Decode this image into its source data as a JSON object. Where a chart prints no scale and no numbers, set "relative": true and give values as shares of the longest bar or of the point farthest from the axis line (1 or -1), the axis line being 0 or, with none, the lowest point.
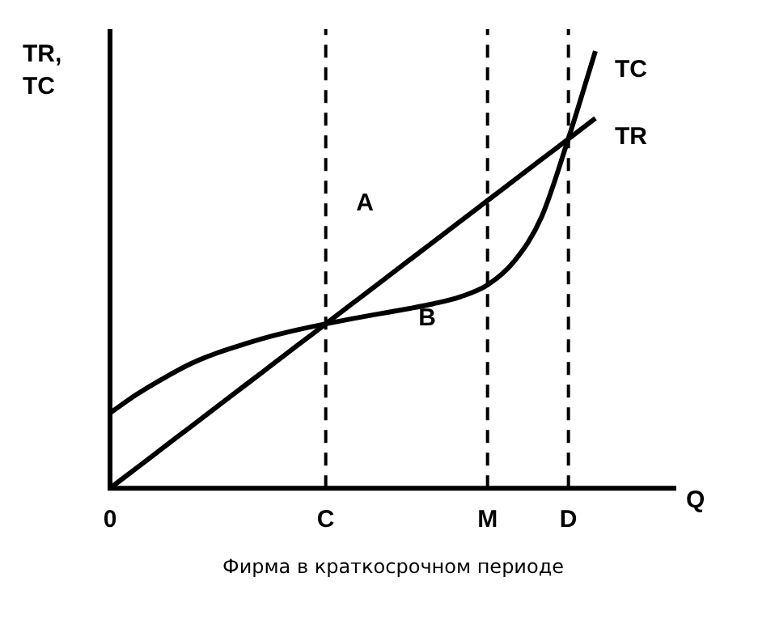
{
  "chart_data": {
    "type": "line",
    "title": "Фирма в краткосрочном периоде",
    "xlabel": "Q",
    "ylabel": "TR,\nTC",
    "relative": true,
    "grid": false,
    "legend": false,
    "marker": "none",
    "line_style": "solid",
    "categories": [
      "0",
      null,
      null,
      null,
      null,
      null,
      null,
      null,
      "C",
      null,
      null,
      null,
      null,
      null,
      "M",
      null,
      null,
      "D",
      null,
      null,
      null,
      null
    ],
    "series": [
      {
        "name": "TC",
        "color": "#000000",
        "values": [
          0.172,
          0.215,
          0.252,
          0.285,
          0.31,
          0.33,
          0.348,
          0.363,
          0.376,
          0.388,
          0.399,
          0.41,
          0.422,
          0.438,
          0.465,
          0.52,
          0.62,
          0.8,
          1.0,
          null,
          null,
          null
        ]
      },
      {
        "name": "TR",
        "color": "#000000",
        "values": [
          0,
          0.047,
          0.094,
          0.141,
          0.188,
          0.235,
          0.282,
          0.329,
          0.376,
          0.423,
          0.47,
          0.517,
          0.564,
          0.611,
          0.658,
          0.705,
          0.752,
          0.799,
          0.846,
          null,
          null,
          null
        ]
      }
    ],
    "ref_lines": [
      {
        "axis": "x",
        "value": "C",
        "line_style": "dashed"
      },
      {
        "axis": "x",
        "value": "M",
        "line_style": "dashed"
      },
      {
        "axis": "x",
        "value": "D",
        "line_style": "dashed"
      }
    ],
    "annotations": [
      "A",
      "B"
    ]
  }
}
